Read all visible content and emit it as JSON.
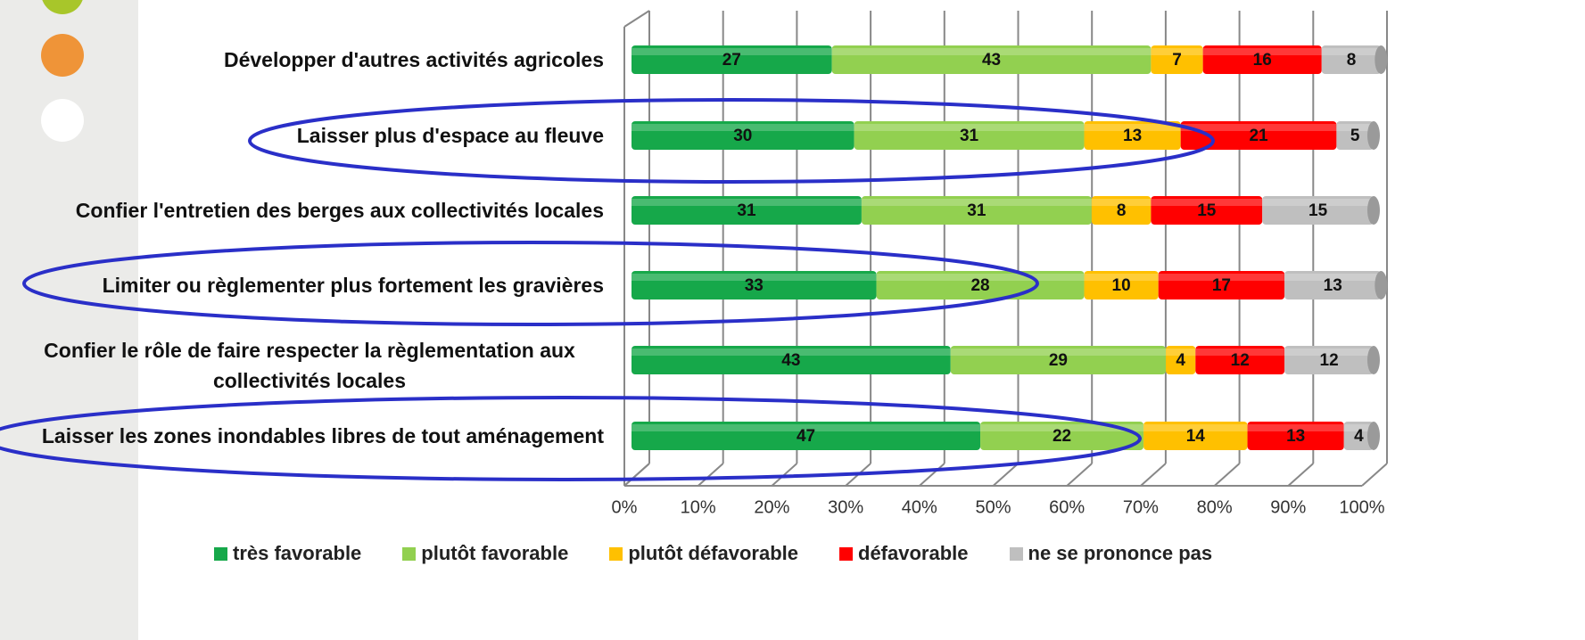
{
  "chart_data": {
    "type": "stacked_bar_horizontal",
    "categories": [
      "Développer d'autres activités agricoles",
      "Laisser plus d'espace au fleuve",
      "Confier l'entretien des berges aux collectivités locales",
      "Limiter ou règlementer plus fortement les gravières",
      "Confier le rôle de faire respecter la règlementation aux collectivités locales",
      "Laisser les zones inondables libres de tout aménagement"
    ],
    "series": [
      {
        "name": "très favorable",
        "color": "#16a84a",
        "values": [
          27,
          30,
          31,
          33,
          43,
          47
        ]
      },
      {
        "name": "plutôt favorable",
        "color": "#92d050",
        "values": [
          43,
          31,
          31,
          28,
          29,
          22
        ]
      },
      {
        "name": "plutôt défavorable",
        "color": "#ffc000",
        "values": [
          7,
          13,
          8,
          10,
          4,
          14
        ]
      },
      {
        "name": "défavorable",
        "color": "#ff0000",
        "values": [
          16,
          21,
          15,
          17,
          12,
          13
        ]
      },
      {
        "name": "ne se prononce pas",
        "color": "#bfbfbf",
        "values": [
          8,
          5,
          15,
          13,
          12,
          4
        ]
      }
    ],
    "xlim": [
      0,
      100
    ],
    "xticks": [
      {
        "value": 0,
        "label": "0%"
      },
      {
        "value": 10,
        "label": "10%"
      },
      {
        "value": 20,
        "label": "20%"
      },
      {
        "value": 30,
        "label": "30%"
      },
      {
        "value": 40,
        "label": "40%"
      },
      {
        "value": 50,
        "label": "50%"
      },
      {
        "value": 60,
        "label": "60%"
      },
      {
        "value": 70,
        "label": "70%"
      },
      {
        "value": 80,
        "label": "80%"
      },
      {
        "value": 90,
        "label": "90%"
      },
      {
        "value": 100,
        "label": "100%"
      }
    ],
    "grid": true
  }
}
